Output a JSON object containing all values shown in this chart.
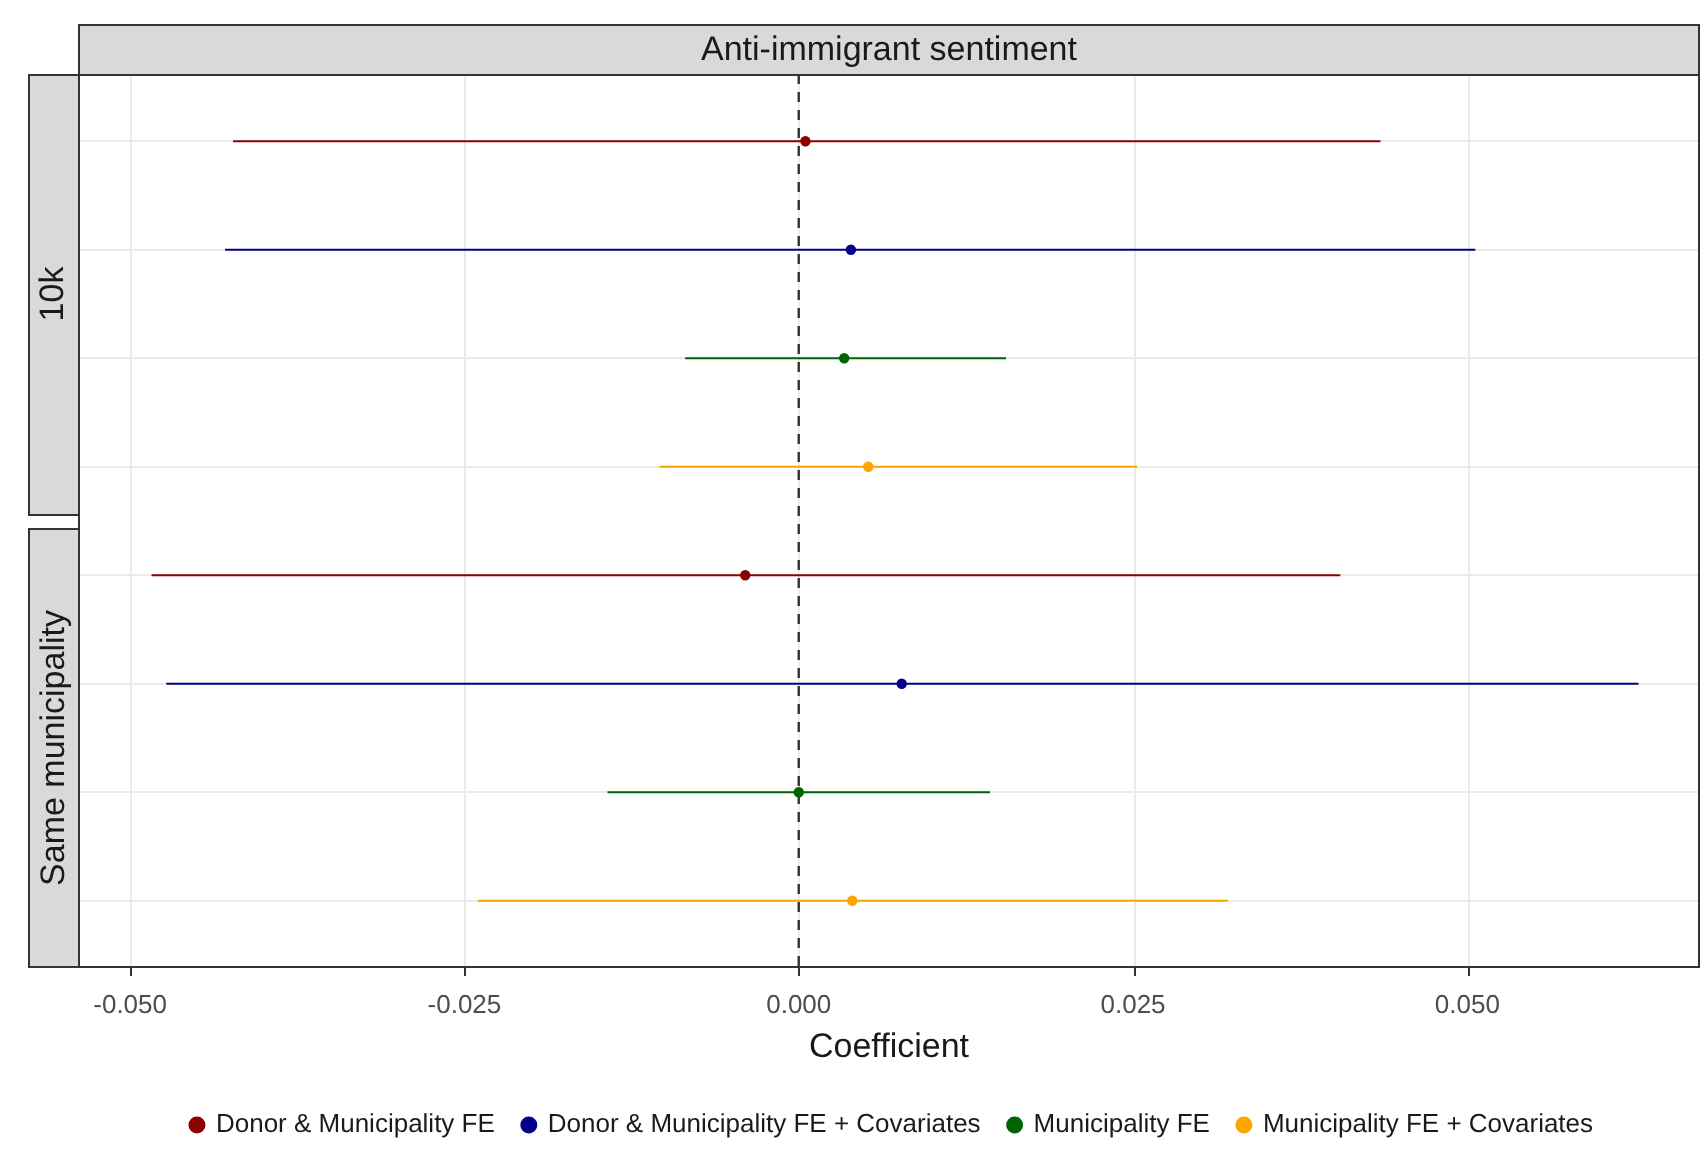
{
  "chart_data": {
    "type": "scatter",
    "title": "Anti-immigrant sentiment",
    "xlabel": "Coefficient",
    "orientation": "horizontal",
    "categories": [
      null,
      null,
      null,
      null,
      null,
      null,
      null,
      null
    ],
    "annotations": [
      "10k",
      "Same municipality"
    ],
    "series": [
      {
        "name": "Donor & Municipality FE",
        "color": "#8b0000",
        "values": [
          0.0005,
          null,
          null,
          null,
          -0.004,
          null,
          null,
          null
        ],
        "errors": [
          [
            -0.0423,
            0.0435
          ],
          null,
          null,
          null,
          [
            -0.0484,
            0.0405
          ],
          null,
          null,
          null
        ]
      },
      {
        "name": "Donor & Municipality FE + Covariates",
        "color": "#00008b",
        "values": [
          null,
          0.0039,
          null,
          null,
          null,
          0.0077,
          null,
          null
        ],
        "errors": [
          null,
          [
            -0.0429,
            0.0506
          ],
          null,
          null,
          null,
          [
            -0.0473,
            0.0628
          ],
          null,
          null
        ]
      },
      {
        "name": "Municipality FE",
        "color": "#006400",
        "values": [
          null,
          null,
          0.0034,
          null,
          null,
          null,
          0.0,
          null
        ],
        "errors": [
          null,
          null,
          [
            -0.0085,
            0.0155
          ],
          null,
          null,
          null,
          [
            -0.0143,
            0.0143
          ],
          null
        ]
      },
      {
        "name": "Municipality FE + Covariates",
        "color": "#ffa500",
        "values": [
          null,
          null,
          null,
          0.0052,
          null,
          null,
          null,
          0.004
        ],
        "errors": [
          null,
          null,
          null,
          [
            -0.0104,
            0.0253
          ],
          null,
          null,
          null,
          [
            -0.024,
            0.0321
          ]
        ]
      }
    ],
    "xlim": [
      -0.0539,
      0.0674
    ],
    "xticks": [
      {
        "value": -0.05,
        "label": "-0.050"
      },
      {
        "value": -0.025,
        "label": "-0.025"
      },
      {
        "value": 0,
        "label": "0.000"
      },
      {
        "value": 0.025,
        "label": "0.025"
      },
      {
        "value": 0.05,
        "label": "0.050"
      }
    ],
    "ref_lines": [
      {
        "axis": "x",
        "value": 0,
        "line_style": "dashed",
        "color": "#333333"
      }
    ],
    "grid": true,
    "marker": "circle",
    "legend": "bottom"
  }
}
